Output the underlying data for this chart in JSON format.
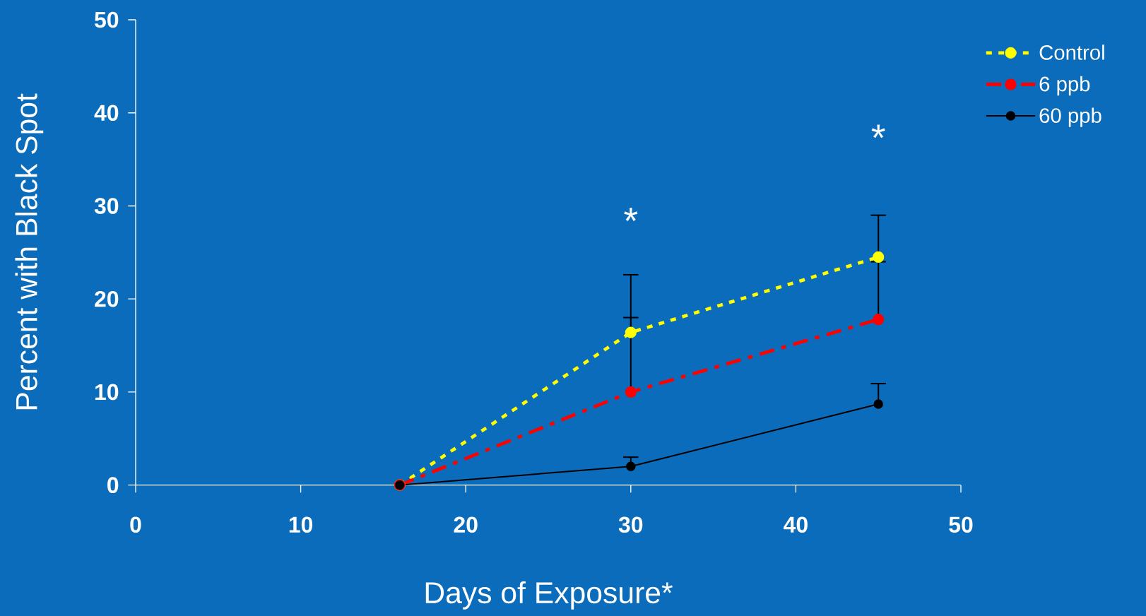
{
  "chart_data": {
    "type": "line",
    "xlabel": "Days of Exposure*",
    "ylabel": "Percent with Black Spot",
    "xlim": [
      0,
      50
    ],
    "xticks": [
      0,
      10,
      20,
      30,
      40,
      50
    ],
    "ylim": [
      0,
      50
    ],
    "yticks": [
      0,
      10,
      20,
      30,
      40,
      50
    ],
    "x": [
      16,
      30,
      45
    ],
    "marker": "circle",
    "legend": "top right",
    "series": [
      {
        "name": "Control",
        "color": "#ffff00",
        "line_style": "dotted",
        "values": [
          0,
          16.4,
          24.5
        ],
        "errors": [
          null,
          [
            16.4,
            22.6
          ],
          [
            24.5,
            29.0
          ]
        ]
      },
      {
        "name": "6 ppb",
        "color": "#ff0000",
        "line_style": "dashed",
        "values": [
          0,
          10.0,
          17.8
        ],
        "errors": [
          null,
          [
            10.0,
            18.0
          ],
          [
            17.8,
            24.0
          ]
        ]
      },
      {
        "name": "60 ppb",
        "color": "#000000",
        "line_style": "solid",
        "values": [
          0,
          2.0,
          8.7
        ],
        "errors": [
          null,
          [
            2.0,
            3.0
          ],
          [
            8.7,
            10.9
          ]
        ]
      }
    ],
    "annotations": [
      "*",
      "*"
    ]
  }
}
